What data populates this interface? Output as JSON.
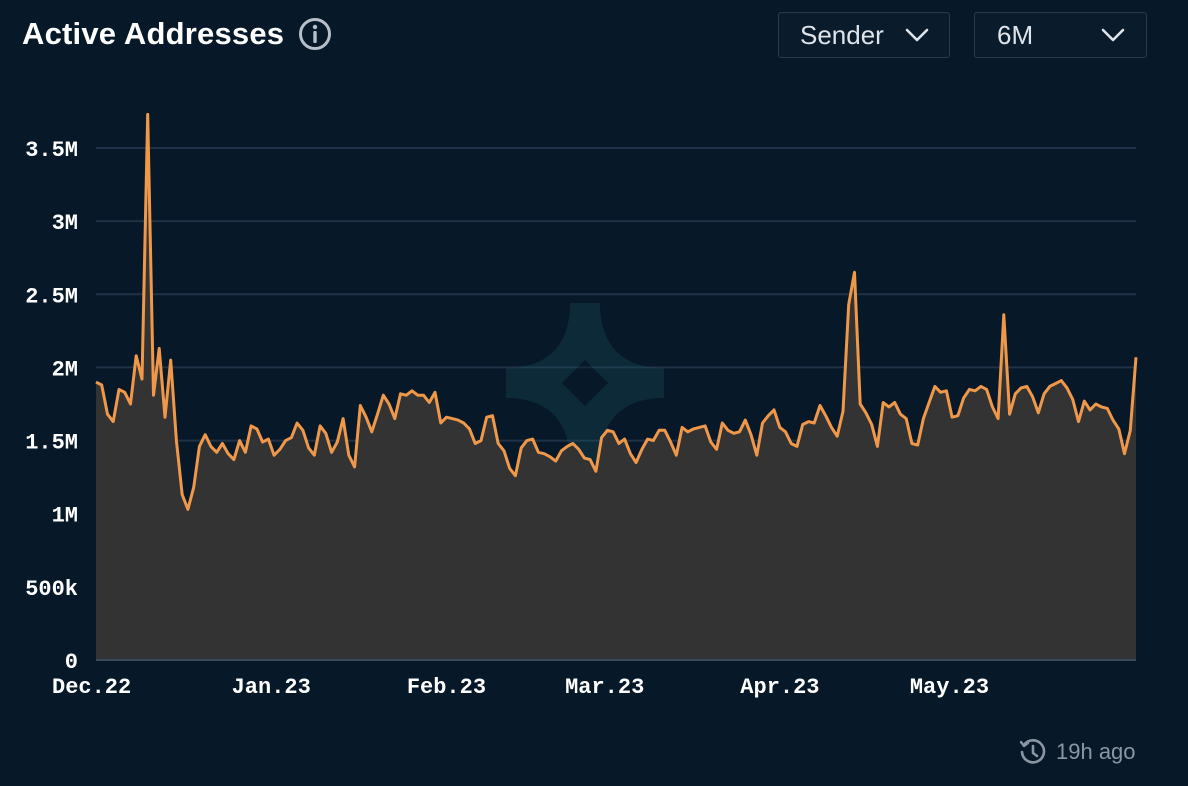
{
  "header": {
    "title": "Active Addresses"
  },
  "controls": {
    "metric_dropdown": "Sender",
    "range_dropdown": "6M"
  },
  "footer": {
    "updated_text": "19h ago"
  },
  "colors": {
    "background": "#071828",
    "line": "#f0984a",
    "area": "#333333",
    "grid": "#1f3146"
  },
  "chart_data": {
    "type": "area",
    "title": "Active Addresses",
    "xlabel": "",
    "ylabel": "",
    "ylim": [
      0,
      3750000
    ],
    "y_ticks": [
      0,
      500000,
      1000000,
      1500000,
      2000000,
      2500000,
      3000000,
      3500000
    ],
    "y_tick_labels": [
      "0",
      "500k",
      "1M",
      "1.5M",
      "2M",
      "2.5M",
      "3M",
      "3.5M"
    ],
    "x_tick_labels": [
      "Dec.22",
      "Jan.23",
      "Feb.23",
      "Mar.23",
      "Apr.23",
      "May.23"
    ],
    "x_tick_dates": [
      "2022-12-01",
      "2023-01-01",
      "2023-02-01",
      "2023-03-01",
      "2023-04-01",
      "2023-05-01"
    ],
    "x_range": [
      "2022-12-01",
      "2023-06-03"
    ],
    "grid": "horizontal",
    "series": [
      {
        "values": [
          1900000,
          1880000,
          1680000,
          1630000,
          1850000,
          1830000,
          1750000,
          2080000,
          1920000,
          3730000,
          1810000,
          2130000,
          1660000,
          2050000,
          1500000,
          1130000,
          1030000,
          1180000,
          1460000,
          1540000,
          1460000,
          1420000,
          1480000,
          1410000,
          1370000,
          1500000,
          1420000,
          1600000,
          1580000,
          1490000,
          1510000,
          1400000,
          1440000,
          1500000,
          1520000,
          1620000,
          1570000,
          1450000,
          1400000,
          1600000,
          1550000,
          1420000,
          1490000,
          1650000,
          1400000,
          1320000,
          1740000,
          1660000,
          1560000,
          1680000,
          1810000,
          1750000,
          1650000,
          1820000,
          1810000,
          1840000,
          1810000,
          1810000,
          1760000,
          1830000,
          1620000,
          1660000,
          1650000,
          1640000,
          1620000,
          1580000,
          1480000,
          1500000,
          1660000,
          1670000,
          1480000,
          1430000,
          1310000,
          1260000,
          1450000,
          1500000,
          1510000,
          1420000,
          1410000,
          1390000,
          1360000,
          1430000,
          1460000,
          1480000,
          1440000,
          1380000,
          1370000,
          1290000,
          1520000,
          1570000,
          1560000,
          1480000,
          1510000,
          1410000,
          1350000,
          1440000,
          1510000,
          1500000,
          1570000,
          1570000,
          1490000,
          1400000,
          1590000,
          1560000,
          1580000,
          1590000,
          1600000,
          1490000,
          1440000,
          1620000,
          1570000,
          1550000,
          1560000,
          1640000,
          1540000,
          1400000,
          1620000,
          1670000,
          1710000,
          1590000,
          1560000,
          1480000,
          1460000,
          1610000,
          1630000,
          1620000,
          1740000,
          1670000,
          1590000,
          1530000,
          1700000,
          2430000,
          2650000,
          1750000,
          1690000,
          1610000,
          1460000,
          1760000,
          1730000,
          1760000,
          1680000,
          1650000,
          1480000,
          1470000,
          1650000,
          1760000,
          1870000,
          1830000,
          1840000,
          1660000,
          1670000,
          1790000,
          1850000,
          1840000,
          1870000,
          1850000,
          1730000,
          1650000,
          2360000,
          1680000,
          1820000,
          1860000,
          1870000,
          1800000,
          1690000,
          1820000,
          1870000,
          1890000,
          1910000,
          1860000,
          1780000,
          1630000,
          1770000,
          1710000,
          1750000,
          1730000,
          1720000,
          1640000,
          1580000,
          1410000,
          1570000,
          2070000
        ]
      }
    ],
    "watermark": "logo"
  }
}
